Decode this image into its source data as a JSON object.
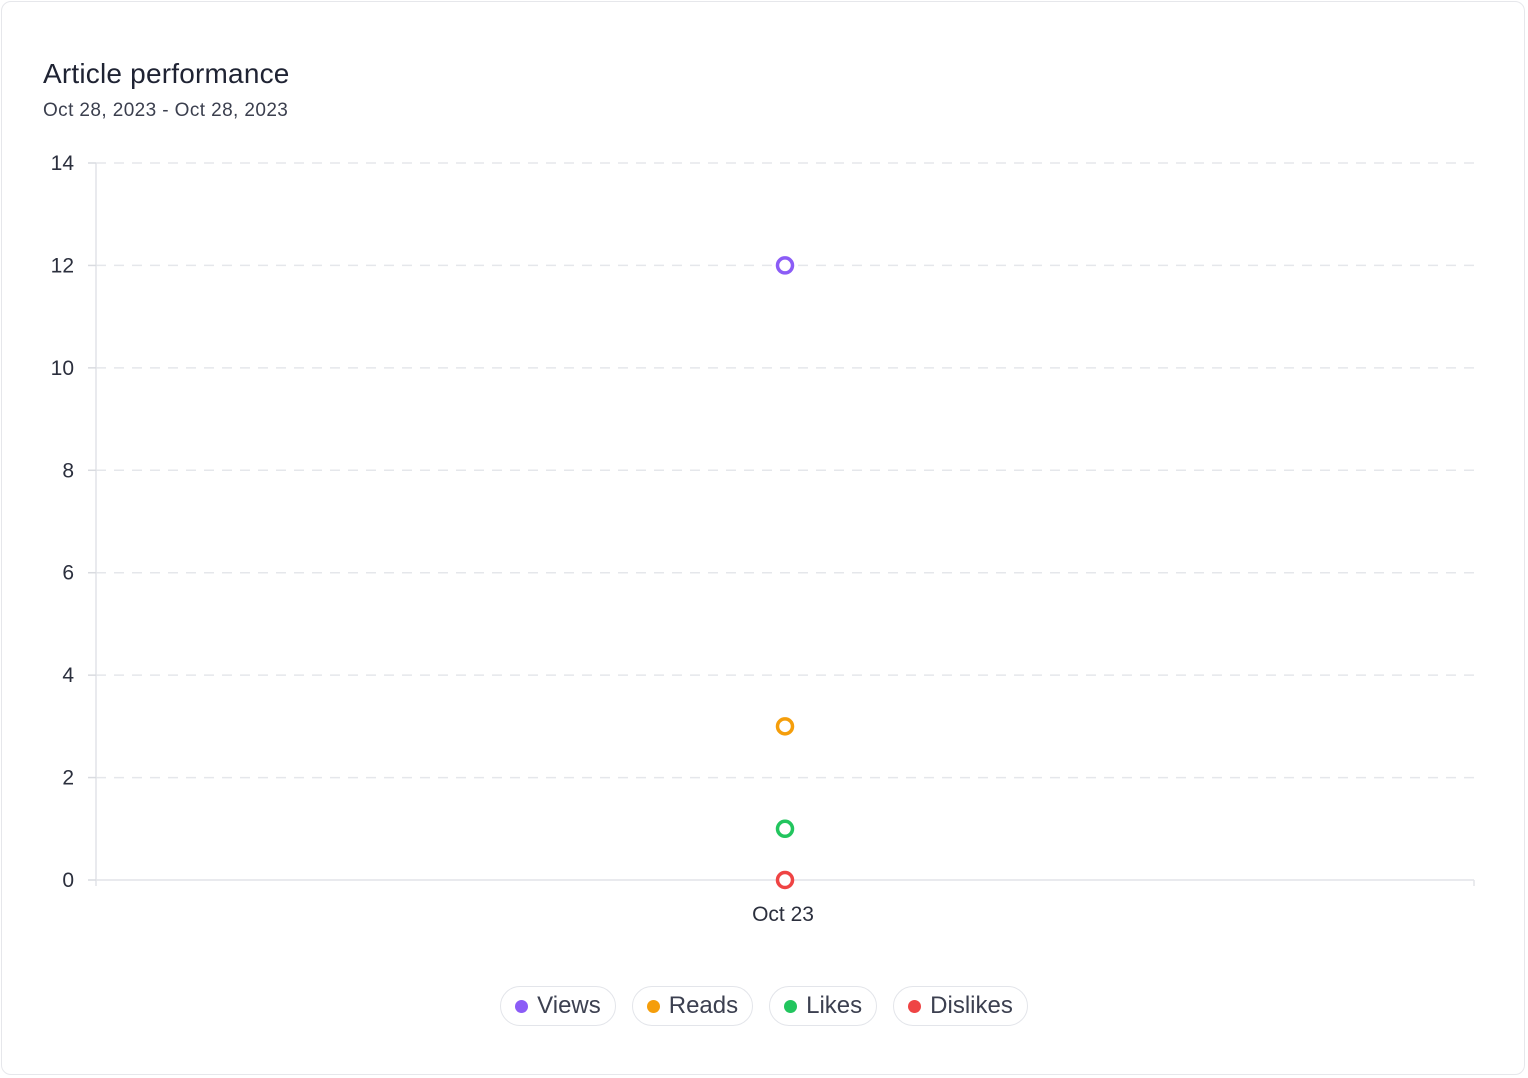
{
  "header": {
    "title": "Article performance",
    "date_range": "Oct 28, 2023 - Oct 28, 2023"
  },
  "chart_data": {
    "type": "scatter",
    "title": "Article performance",
    "subtitle": "Oct 28, 2023 - Oct 28, 2023",
    "categories": [
      "Oct 23"
    ],
    "yticks": [
      0,
      2,
      4,
      6,
      8,
      10,
      12,
      14
    ],
    "ylim": [
      0,
      14
    ],
    "grid": true,
    "legend_position": "bottom",
    "series": [
      {
        "name": "Views",
        "values": [
          12
        ],
        "color": "#8b5cf6"
      },
      {
        "name": "Reads",
        "values": [
          3
        ],
        "color": "#f59e0b"
      },
      {
        "name": "Likes",
        "values": [
          1
        ],
        "color": "#22c55e"
      },
      {
        "name": "Dislikes",
        "values": [
          0
        ],
        "color": "#ef4444"
      }
    ]
  }
}
